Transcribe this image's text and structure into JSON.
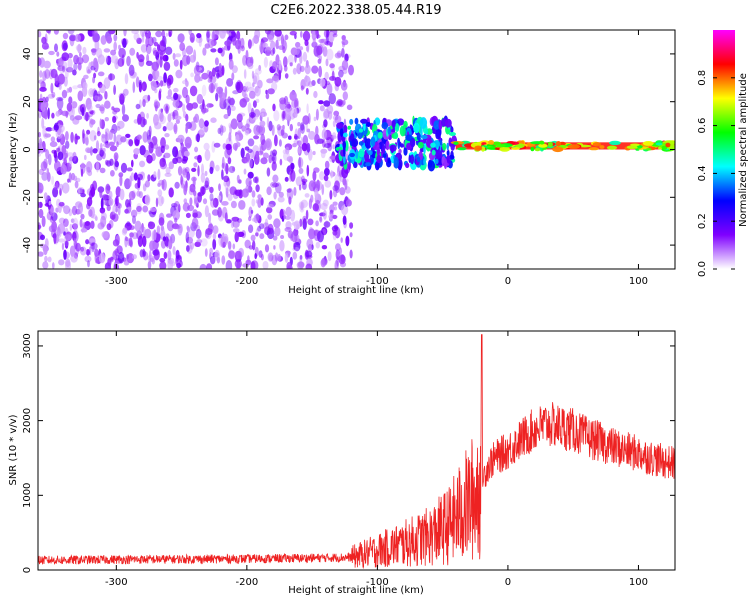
{
  "title": "C2E6.2022.338.05.44.R19",
  "chart_data": [
    {
      "type": "heatmap",
      "xlabel": "Height of straight line (km)",
      "ylabel": "Frequency (Hz)",
      "xlim": [
        -360,
        128
      ],
      "ylim": [
        -50,
        50
      ],
      "x_ticks": [
        -300,
        -200,
        -100,
        0,
        100
      ],
      "y_ticks": [
        -40,
        -20,
        0,
        20,
        40
      ],
      "x_tick_labels": [
        "-300",
        "-200",
        "-100",
        "0",
        "100"
      ],
      "y_tick_labels": [
        "-40",
        "-20",
        "0",
        "20",
        "40"
      ],
      "colorbar": {
        "label": "Normalized spectral amplitude",
        "range": [
          0,
          1
        ],
        "ticks": [
          0.0,
          0.2,
          0.4,
          0.6,
          0.8
        ],
        "tick_labels": [
          "0.0",
          "0.2",
          "0.4",
          "0.6",
          "0.8"
        ],
        "colors": [
          "#ffffff",
          "#7f00ff",
          "#0000ff",
          "#00ffff",
          "#00ff00",
          "#ffff00",
          "#ff0000",
          "#ff00ff"
        ]
      },
      "regions": [
        {
          "x": [
            -360,
            -120
          ],
          "freq": [
            -50,
            50
          ],
          "amplitude": 0.1,
          "description": "noise"
        },
        {
          "x": [
            -130,
            -40
          ],
          "freq": [
            -7,
            12
          ],
          "amplitude": 0.35
        },
        {
          "x": [
            -40,
            128
          ],
          "freq": [
            0,
            3
          ],
          "amplitude": 0.85
        }
      ]
    },
    {
      "type": "line",
      "xlabel": "Height of straight line (km)",
      "ylabel": "SNR (10 * v/v)",
      "xlim": [
        -360,
        128
      ],
      "ylim": [
        0,
        3200
      ],
      "x_ticks": [
        -300,
        -200,
        -100,
        0,
        100
      ],
      "y_ticks": [
        0,
        1000,
        2000,
        3000
      ],
      "x_tick_labels": [
        "-300",
        "-200",
        "-100",
        "0",
        "100"
      ],
      "y_tick_labels": [
        "0",
        "1000",
        "2000",
        "3000"
      ],
      "series": [
        {
          "color": "#ee2222",
          "x": [
            -360,
            -300,
            -250,
            -200,
            -150,
            -120,
            -100,
            -80,
            -60,
            -45,
            -35,
            -25,
            -20,
            -15,
            -10,
            0,
            10,
            20,
            30,
            40,
            50,
            60,
            70,
            80,
            90,
            100,
            110,
            120,
            128
          ],
          "y": [
            130,
            140,
            145,
            150,
            160,
            170,
            260,
            350,
            450,
            600,
            800,
            1000,
            1200,
            1400,
            1500,
            1600,
            1750,
            1880,
            1950,
            1920,
            1870,
            1780,
            1720,
            1650,
            1600,
            1560,
            1500,
            1450,
            1430
          ]
        }
      ],
      "annotations": [
        {
          "x": -20,
          "y": 3150,
          "description": "spike"
        }
      ]
    }
  ]
}
